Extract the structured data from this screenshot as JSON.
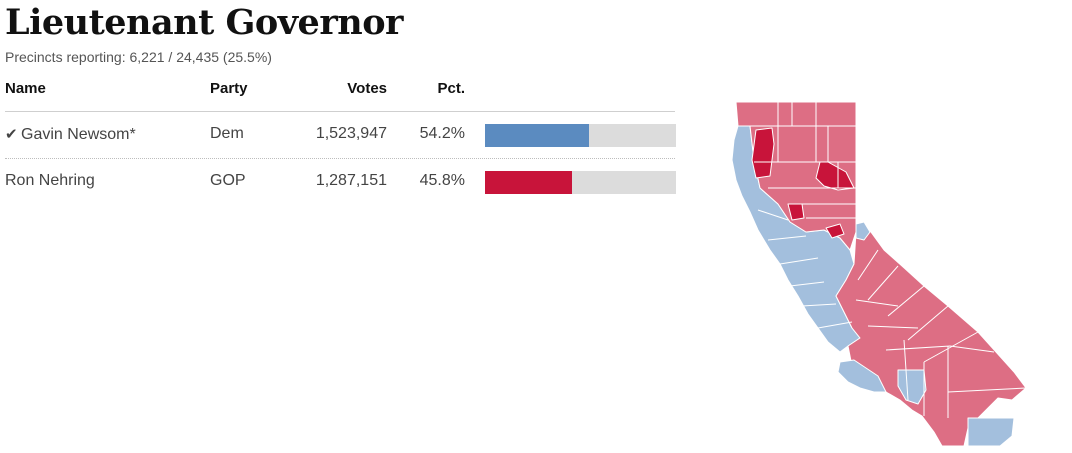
{
  "race": {
    "title": "Lieutenant Governor",
    "precincts": "Precincts reporting: 6,221 / 24,435 (25.5%)"
  },
  "table": {
    "headers": {
      "name": "Name",
      "party": "Party",
      "votes": "Votes",
      "pct": "Pct."
    },
    "rows": [
      {
        "name": "Gavin Newsom*",
        "winner": true,
        "party": "Dem",
        "votes": "1,523,947",
        "pct": "54.2%",
        "share": 54.2,
        "color": "#5b8bc0"
      },
      {
        "name": "Ron Nehring",
        "winner": false,
        "party": "GOP",
        "votes": "1,287,151",
        "pct": "45.8%",
        "share": 45.8,
        "color": "#c8143a"
      }
    ]
  },
  "map": {
    "colors": {
      "dem": "#a3bfdd",
      "gop_lean": "#dd6e84",
      "gop_strong": "#c8143a",
      "border": "#ffffff"
    },
    "winner_icon": "checkmark-icon"
  }
}
